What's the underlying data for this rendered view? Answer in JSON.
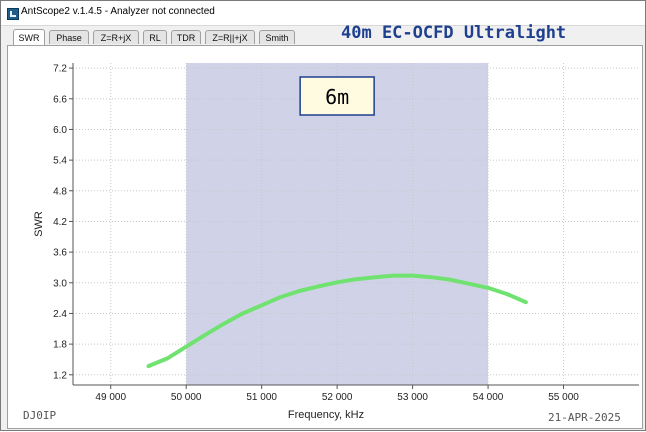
{
  "window": {
    "title": "AntScope2 v.1.4.5 - Analyzer not connected"
  },
  "tabs": [
    {
      "label": "SWR",
      "active": true
    },
    {
      "label": "Phase",
      "active": false
    },
    {
      "label": "Z=R+jX",
      "active": false
    },
    {
      "label": "RL",
      "active": false
    },
    {
      "label": "TDR",
      "active": false
    },
    {
      "label": "Z=R||+jX",
      "active": false
    },
    {
      "label": "Smith",
      "active": false
    }
  ],
  "heading": "40m EC-OCFD Ultralight",
  "footer": {
    "callsign": "DJ0IP",
    "date": "21-APR-2025"
  },
  "colors": {
    "band": "#d0d3e8",
    "curve": "#6fe26f",
    "heading": "#1f3f8f",
    "label_border": "#1f3f8f"
  },
  "chart_data": {
    "type": "line",
    "xlabel": "Frequency, kHz",
    "ylabel": "SWR",
    "xlim": [
      48500,
      56000
    ],
    "ylim": [
      1.0,
      7.3
    ],
    "x_ticks": [
      49000,
      50000,
      51000,
      52000,
      53000,
      54000,
      55000
    ],
    "x_tick_labels": [
      "49 000",
      "50 000",
      "51 000",
      "52 000",
      "53 000",
      "54 000",
      "55 000"
    ],
    "y_ticks": [
      1.2,
      1.8,
      2.4,
      3.0,
      3.6,
      4.2,
      4.8,
      5.4,
      6.0,
      6.6,
      7.2
    ],
    "y_tick_labels": [
      "1.2",
      "1.8",
      "2.4",
      "3.0",
      "3.6",
      "4.2",
      "4.8",
      "5.4",
      "6.0",
      "6.6",
      "7.2"
    ],
    "band": {
      "label": "6m",
      "start": 50000,
      "end": 54000
    },
    "series": [
      {
        "x": [
          49500,
          49750,
          50000,
          50250,
          50500,
          50750,
          51000,
          51250,
          51500,
          51750,
          52000,
          52250,
          52500,
          52750,
          53000,
          53250,
          53500,
          53750,
          54000,
          54250,
          54500
        ],
        "y": [
          1.37,
          1.52,
          1.75,
          1.98,
          2.2,
          2.4,
          2.56,
          2.72,
          2.84,
          2.93,
          3.01,
          3.07,
          3.11,
          3.14,
          3.14,
          3.11,
          3.06,
          2.98,
          2.9,
          2.78,
          2.62
        ]
      }
    ]
  }
}
